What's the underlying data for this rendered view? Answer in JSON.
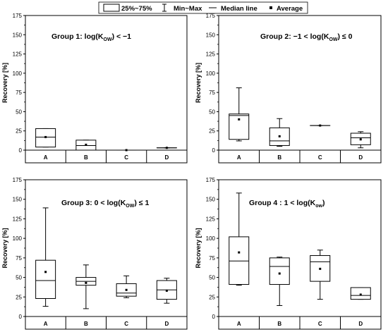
{
  "legend": {
    "box_label": "25%~75%",
    "whisker_label": "Min~Max",
    "median_label": "Median line",
    "mean_label": "Average"
  },
  "chart_data": [
    {
      "type": "box",
      "title": {
        "prefix": "Group 1: log(K",
        "sub": "OW",
        "suffix": ") < −1"
      },
      "ylabel": "Recovery [%]",
      "ylim": [
        0,
        175
      ],
      "yticks": [
        0,
        25,
        50,
        75,
        100,
        125,
        150,
        175
      ],
      "categories": [
        "A",
        "B",
        "C",
        "D"
      ],
      "boxes": [
        {
          "category": "A",
          "min": 4,
          "q1": 4,
          "median": 17,
          "q3": 28,
          "max": 28,
          "mean": 17
        },
        {
          "category": "B",
          "min": 0,
          "q1": 0,
          "median": 6,
          "q3": 13,
          "max": 13,
          "mean": 7
        },
        {
          "category": "C",
          "min": 0,
          "q1": 0,
          "median": 0,
          "q3": 0,
          "max": 0,
          "mean": 0
        },
        {
          "category": "D",
          "min": 3,
          "q1": 3,
          "median": 3,
          "q3": 3,
          "max": 3,
          "mean": 3
        }
      ]
    },
    {
      "type": "box",
      "title": {
        "prefix": "Group 2: −1 < log(K",
        "sub": "OW",
        "suffix": ") ≤ 0"
      },
      "ylabel": "Recovery [%]",
      "ylim": [
        0,
        175
      ],
      "yticks": [
        0,
        25,
        50,
        75,
        100,
        125,
        150,
        175
      ],
      "categories": [
        "A",
        "B",
        "C",
        "D"
      ],
      "boxes": [
        {
          "category": "A",
          "min": 12,
          "q1": 14,
          "median": 45,
          "q3": 47,
          "max": 81,
          "mean": 40
        },
        {
          "category": "B",
          "min": 5,
          "q1": 6,
          "median": 12,
          "q3": 29,
          "max": 41,
          "mean": 18
        },
        {
          "category": "C",
          "min": 32,
          "q1": 32,
          "median": 32,
          "q3": 32,
          "max": 32,
          "mean": 32
        },
        {
          "category": "D",
          "min": 3,
          "q1": 7,
          "median": 16,
          "q3": 22,
          "max": 24,
          "mean": 14
        }
      ]
    },
    {
      "type": "box",
      "title": {
        "prefix": "Group 3: 0 < log(K",
        "sub": "OW",
        "suffix": ") ≤ 1"
      },
      "ylabel": "Recovery [%]",
      "ylim": [
        0,
        175
      ],
      "yticks": [
        0,
        25,
        50,
        75,
        100,
        125,
        150,
        175
      ],
      "categories": [
        "A",
        "B",
        "C",
        "D"
      ],
      "boxes": [
        {
          "category": "A",
          "min": 13,
          "q1": 23,
          "median": 46,
          "q3": 72,
          "max": 139,
          "mean": 57
        },
        {
          "category": "B",
          "min": 10,
          "q1": 40,
          "median": 45,
          "q3": 50,
          "max": 66,
          "mean": 43
        },
        {
          "category": "C",
          "min": 24,
          "q1": 26,
          "median": 30,
          "q3": 42,
          "max": 52,
          "mean": 34
        },
        {
          "category": "D",
          "min": 17,
          "q1": 22,
          "median": 34,
          "q3": 46,
          "max": 49,
          "mean": 33
        }
      ]
    },
    {
      "type": "box",
      "title": {
        "prefix": "Group 4 : 1 < log(K",
        "sub": "ow",
        "suffix": ")"
      },
      "ylabel": "Recovery [%]",
      "ylim": [
        0,
        175
      ],
      "yticks": [
        0,
        25,
        50,
        75,
        100,
        125,
        150,
        175
      ],
      "categories": [
        "A",
        "B",
        "C",
        "D"
      ],
      "boxes": [
        {
          "category": "A",
          "min": 40,
          "q1": 41,
          "median": 71,
          "q3": 102,
          "max": 158,
          "mean": 82
        },
        {
          "category": "B",
          "min": 14,
          "q1": 41,
          "median": 64,
          "q3": 75,
          "max": 76,
          "mean": 55
        },
        {
          "category": "C",
          "min": 22,
          "q1": 45,
          "median": 70,
          "q3": 78,
          "max": 85,
          "mean": 61
        },
        {
          "category": "D",
          "min": 22,
          "q1": 22,
          "median": 27,
          "q3": 37,
          "max": 37,
          "mean": 28
        }
      ]
    }
  ]
}
